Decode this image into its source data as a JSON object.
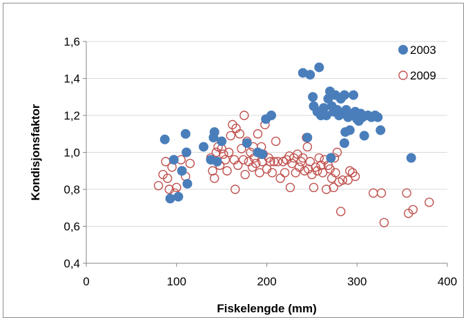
{
  "chart_data": {
    "type": "scatter",
    "title": "",
    "xlabel": "Fiskelengde (mm)",
    "ylabel": "Kondisjonsfaktor",
    "xlim": [
      0,
      400
    ],
    "ylim": [
      0.4,
      1.6
    ],
    "xticks": [
      0,
      100,
      200,
      300,
      400
    ],
    "yticks": [
      0.4,
      0.6,
      0.8,
      1.0,
      1.2,
      1.4,
      1.6
    ],
    "x_tick_labels": [
      "0",
      "100",
      "200",
      "300",
      "400"
    ],
    "y_tick_labels": [
      "0,4",
      "0,6",
      "0,8",
      "1,0",
      "1,2",
      "1,4",
      "1,6"
    ],
    "grid": "horizontal",
    "legend_position": "top-right",
    "series": [
      {
        "name": "2003",
        "marker": "filled-circle",
        "color": "#4a7ebb",
        "points": [
          [
            87,
            1.07
          ],
          [
            93,
            0.75
          ],
          [
            97,
            0.96
          ],
          [
            102,
            0.76
          ],
          [
            106,
            0.9
          ],
          [
            110,
            1.1
          ],
          [
            111,
            1.0
          ],
          [
            112,
            0.83
          ],
          [
            130,
            1.03
          ],
          [
            138,
            0.96
          ],
          [
            141,
            1.08
          ],
          [
            142,
            1.11
          ],
          [
            145,
            0.95
          ],
          [
            150,
            1.06
          ],
          [
            178,
            1.05
          ],
          [
            190,
            1.0
          ],
          [
            195,
            0.99
          ],
          [
            199,
            1.18
          ],
          [
            205,
            1.2
          ],
          [
            245,
            1.08
          ],
          [
            240,
            1.43
          ],
          [
            248,
            1.42
          ],
          [
            258,
            1.46
          ],
          [
            251,
            1.3
          ],
          [
            252,
            1.25
          ],
          [
            256,
            1.22
          ],
          [
            260,
            1.2
          ],
          [
            263,
            1.24
          ],
          [
            266,
            1.2
          ],
          [
            268,
            1.29
          ],
          [
            270,
            1.33
          ],
          [
            272,
            1.25
          ],
          [
            274,
            1.22
          ],
          [
            276,
            1.31
          ],
          [
            278,
            1.23
          ],
          [
            280,
            1.2
          ],
          [
            282,
            1.29
          ],
          [
            284,
            1.21
          ],
          [
            286,
            1.31
          ],
          [
            287,
            1.11
          ],
          [
            288,
            1.23
          ],
          [
            290,
            1.19
          ],
          [
            292,
            1.12
          ],
          [
            294,
            1.2
          ],
          [
            296,
            1.31
          ],
          [
            298,
            1.22
          ],
          [
            300,
            1.18
          ],
          [
            302,
            1.17
          ],
          [
            304,
            1.21
          ],
          [
            306,
            1.19
          ],
          [
            308,
            1.09
          ],
          [
            312,
            1.2
          ],
          [
            316,
            1.19
          ],
          [
            320,
            1.2
          ],
          [
            323,
            1.19
          ],
          [
            326,
            1.12
          ],
          [
            271,
            0.97
          ],
          [
            286,
            1.05
          ],
          [
            360,
            0.97
          ]
        ]
      },
      {
        "name": "2009",
        "marker": "open-circle",
        "color": "#c0504d",
        "points": [
          [
            80,
            0.82
          ],
          [
            85,
            0.88
          ],
          [
            88,
            0.95
          ],
          [
            90,
            0.86
          ],
          [
            92,
            0.8
          ],
          [
            95,
            0.92
          ],
          [
            98,
            0.78
          ],
          [
            100,
            0.81
          ],
          [
            105,
            0.96
          ],
          [
            110,
            0.87
          ],
          [
            115,
            0.94
          ],
          [
            138,
            0.97
          ],
          [
            140,
            0.9
          ],
          [
            142,
            0.86
          ],
          [
            144,
            1.0
          ],
          [
            146,
            1.03
          ],
          [
            148,
            0.93
          ],
          [
            150,
            1.02
          ],
          [
            152,
            0.99
          ],
          [
            154,
            0.96
          ],
          [
            156,
            0.9
          ],
          [
            158,
            1.0
          ],
          [
            160,
            1.09
          ],
          [
            162,
            1.15
          ],
          [
            164,
            0.96
          ],
          [
            165,
            0.8
          ],
          [
            166,
            1.13
          ],
          [
            168,
            0.93
          ],
          [
            170,
            1.1
          ],
          [
            172,
            1.02
          ],
          [
            174,
            0.96
          ],
          [
            175,
            1.2
          ],
          [
            176,
            0.88
          ],
          [
            178,
            1.06
          ],
          [
            180,
            0.95
          ],
          [
            182,
            1.0
          ],
          [
            184,
            0.92
          ],
          [
            185,
            1.03
          ],
          [
            186,
            0.97
          ],
          [
            188,
            0.94
          ],
          [
            190,
            1.1
          ],
          [
            192,
            0.89
          ],
          [
            194,
            1.03
          ],
          [
            195,
            0.95
          ],
          [
            196,
            0.99
          ],
          [
            198,
            1.15
          ],
          [
            200,
            0.91
          ],
          [
            202,
            0.97
          ],
          [
            204,
            0.95
          ],
          [
            206,
            0.89
          ],
          [
            208,
            0.95
          ],
          [
            210,
            1.06
          ],
          [
            212,
            0.95
          ],
          [
            215,
            0.86
          ],
          [
            218,
            0.95
          ],
          [
            220,
            0.89
          ],
          [
            222,
            0.96
          ],
          [
            225,
            0.98
          ],
          [
            226,
            0.81
          ],
          [
            228,
            0.94
          ],
          [
            230,
            0.97
          ],
          [
            232,
            0.89
          ],
          [
            234,
            0.99
          ],
          [
            236,
            0.92
          ],
          [
            238,
            0.95
          ],
          [
            240,
            0.97
          ],
          [
            242,
            0.9
          ],
          [
            244,
            1.08
          ],
          [
            245,
            1.03
          ],
          [
            246,
            0.91
          ],
          [
            248,
            0.95
          ],
          [
            250,
            0.88
          ],
          [
            252,
            0.81
          ],
          [
            254,
            0.92
          ],
          [
            256,
            0.9
          ],
          [
            258,
            0.97
          ],
          [
            260,
            0.93
          ],
          [
            262,
            0.89
          ],
          [
            264,
            0.96
          ],
          [
            266,
            0.8
          ],
          [
            268,
            0.93
          ],
          [
            270,
            0.91
          ],
          [
            272,
            0.86
          ],
          [
            274,
            0.81
          ],
          [
            275,
            0.97
          ],
          [
            276,
            0.89
          ],
          [
            278,
            1.0
          ],
          [
            280,
            0.84
          ],
          [
            282,
            0.68
          ],
          [
            284,
            0.85
          ],
          [
            290,
            0.85
          ],
          [
            292,
            0.9
          ],
          [
            295,
            0.89
          ],
          [
            298,
            0.87
          ],
          [
            318,
            0.78
          ],
          [
            327,
            0.78
          ],
          [
            330,
            0.62
          ],
          [
            355,
            0.78
          ],
          [
            357,
            0.67
          ],
          [
            362,
            0.69
          ],
          [
            380,
            0.73
          ]
        ]
      }
    ]
  }
}
